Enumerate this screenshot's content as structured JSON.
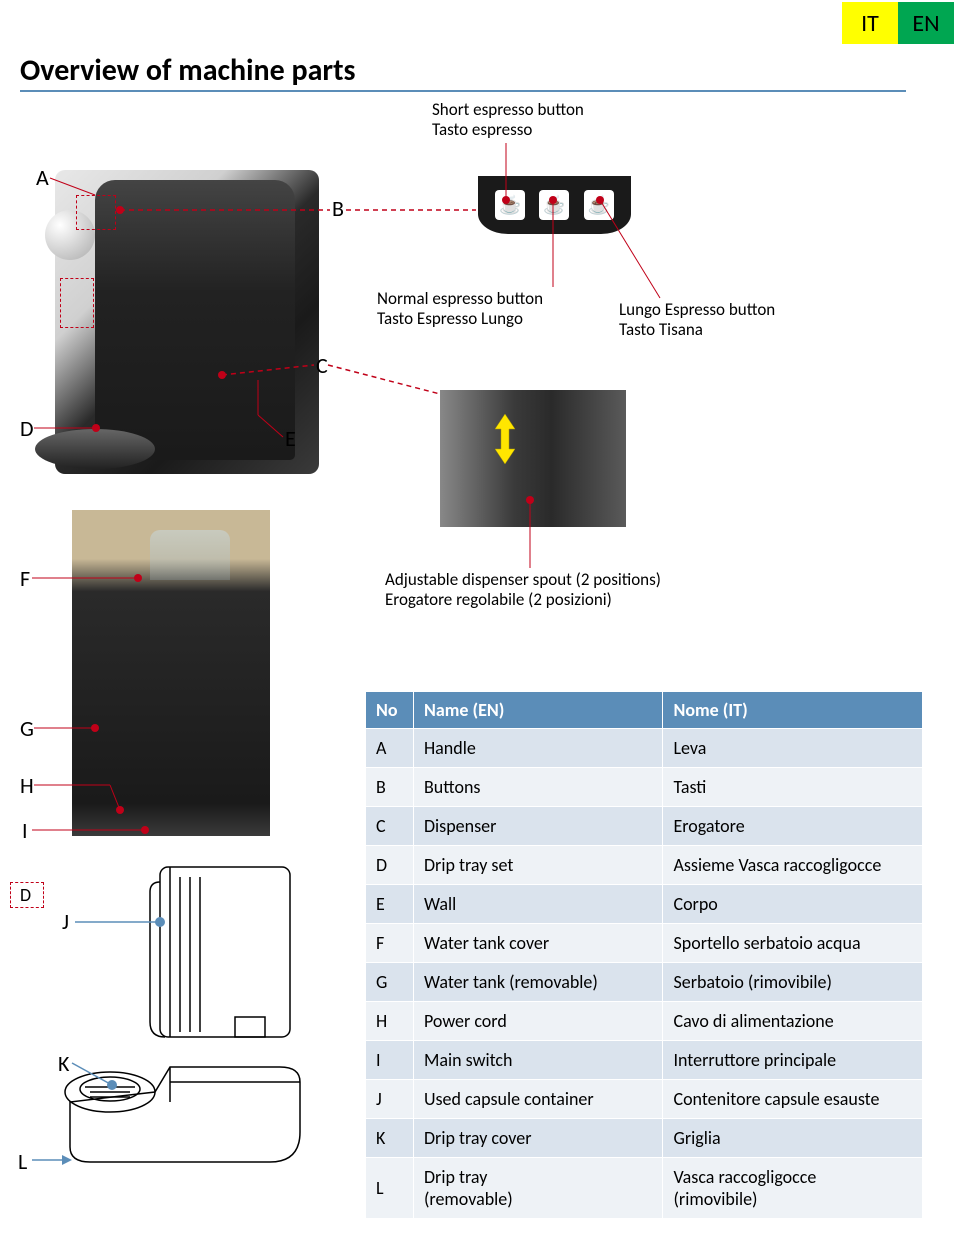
{
  "lang_tabs": {
    "it": "IT",
    "en": "EN",
    "it_bg": "#ffff00",
    "en_bg": "#00a651"
  },
  "title": "Overview of machine parts",
  "title_underline_color": "#5b8db8",
  "annotations": {
    "short_btn": "Short espresso button\nTasto espresso",
    "normal_btn": "Normal espresso button\nTasto Espresso Lungo",
    "lungo_btn": "Lungo Espresso  button\nTasto Tisana",
    "dispenser": "Adjustable dispenser spout  (2 positions)\nErogatore regolabile  (2 posizioni)"
  },
  "letters": {
    "A": "A",
    "B": "B",
    "C": "C",
    "D": "D",
    "E": "E",
    "F": "F",
    "G": "G",
    "H": "H",
    "I": "I",
    "J": "J",
    "K": "K",
    "L": "L",
    "D2": "D"
  },
  "table": {
    "header_bg": "#5b8db8",
    "odd_bg": "#dae3ed",
    "even_bg": "#eef2f6",
    "columns": [
      "No",
      "Name (EN)",
      "Nome (IT)"
    ],
    "rows": [
      [
        "A",
        "Handle",
        "Leva"
      ],
      [
        "B",
        "Buttons",
        "Tasti"
      ],
      [
        "C",
        "Dispenser",
        "Erogatore"
      ],
      [
        "D",
        "Drip tray set",
        "Assieme Vasca raccogligocce"
      ],
      [
        "E",
        "Wall",
        "Corpo"
      ],
      [
        "F",
        "Water tank cover",
        "Sportello serbatoio acqua"
      ],
      [
        "G",
        " Water tank (removable)",
        " Serbatoio (rimovibile)"
      ],
      [
        "H",
        "Power cord",
        "Cavo di  alimentazione"
      ],
      [
        "I",
        "Main switch",
        "Interruttore principale"
      ],
      [
        "J",
        "Used capsule container",
        "Contenitore capsule esauste"
      ],
      [
        "K",
        "Drip tray cover",
        "Griglia"
      ],
      [
        "L",
        "Drip tray\n (removable)",
        "Vasca raccogligocce\n (rimovibile)"
      ]
    ]
  },
  "colors": {
    "red_dot": "#c00018",
    "red_line": "#c00018",
    "blue_accent": "#5b8db8",
    "yellow_arrow": "#ffe600"
  }
}
